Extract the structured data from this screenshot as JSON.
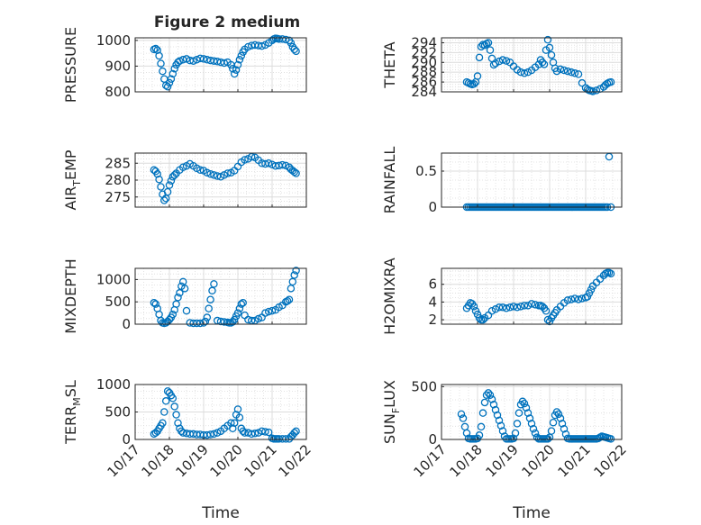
{
  "figure_title": "Figure 2 medium",
  "colors": {
    "marker": "#0072BD",
    "axis": "#262626",
    "grid": "#dcdcdc"
  },
  "chart_data": [
    {
      "type": "scatter",
      "panel": "pressure",
      "title": "Figure 2 medium",
      "ylabel_main": "PRESSURE",
      "ylabel_sub": "",
      "ylabel_tail": "",
      "xlabel": "",
      "ylim": [
        800,
        1010
      ],
      "yticks": [
        800,
        900,
        1000
      ],
      "xlim": [
        17,
        22
      ],
      "xticks": [
        17,
        18,
        19,
        20,
        21,
        22
      ],
      "xtick_labels": [],
      "grid": true,
      "x": [
        17.55,
        17.6,
        17.65,
        17.7,
        17.75,
        17.8,
        17.85,
        17.9,
        17.95,
        18.0,
        18.05,
        18.1,
        18.15,
        18.2,
        18.25,
        18.3,
        18.4,
        18.5,
        18.6,
        18.7,
        18.8,
        18.9,
        19.0,
        19.1,
        19.2,
        19.3,
        19.4,
        19.5,
        19.6,
        19.7,
        19.8,
        19.85,
        19.9,
        19.95,
        20.0,
        20.05,
        20.1,
        20.15,
        20.2,
        20.3,
        20.4,
        20.5,
        20.6,
        20.7,
        20.8,
        20.9,
        21.0,
        21.05,
        21.1,
        21.15,
        21.2,
        21.3,
        21.4,
        21.5,
        21.55,
        21.6,
        21.65,
        21.7
      ],
      "y": [
        965,
        968,
        962,
        940,
        910,
        880,
        850,
        825,
        820,
        835,
        850,
        870,
        890,
        905,
        915,
        920,
        925,
        928,
        922,
        920,
        925,
        930,
        928,
        925,
        922,
        920,
        918,
        915,
        912,
        915,
        905,
        890,
        870,
        885,
        905,
        925,
        940,
        955,
        965,
        975,
        980,
        982,
        980,
        978,
        982,
        990,
        1000,
        1005,
        1008,
        1007,
        1005,
        1005,
        1003,
        1000,
        990,
        975,
        965,
        958
      ]
    },
    {
      "type": "scatter",
      "panel": "theta",
      "title": "",
      "ylabel_main": "THETA",
      "ylabel_sub": "",
      "ylabel_tail": "",
      "xlabel": "",
      "ylim": [
        284,
        295
      ],
      "yticks": [
        284,
        286,
        288,
        290,
        292,
        294
      ],
      "xlim": [
        17,
        22
      ],
      "xticks": [
        17,
        18,
        19,
        20,
        21,
        22
      ],
      "xtick_labels": [],
      "grid": true,
      "x": [
        17.7,
        17.75,
        17.8,
        17.85,
        17.9,
        17.95,
        18.0,
        18.05,
        18.1,
        18.15,
        18.2,
        18.25,
        18.3,
        18.35,
        18.4,
        18.45,
        18.5,
        18.6,
        18.7,
        18.8,
        18.9,
        19.0,
        19.1,
        19.2,
        19.3,
        19.4,
        19.5,
        19.6,
        19.7,
        19.75,
        19.8,
        19.85,
        19.9,
        19.95,
        20.0,
        20.05,
        20.1,
        20.15,
        20.2,
        20.3,
        20.4,
        20.5,
        20.6,
        20.7,
        20.8,
        20.9,
        21.0,
        21.05,
        21.1,
        21.15,
        21.2,
        21.3,
        21.4,
        21.5,
        21.55,
        21.6,
        21.65,
        21.7
      ],
      "y": [
        286.0,
        285.8,
        285.6,
        285.5,
        285.6,
        286.0,
        287.2,
        291.0,
        293.2,
        293.6,
        293.5,
        293.8,
        294.0,
        292.5,
        290.8,
        289.5,
        289.8,
        290.2,
        290.5,
        290.3,
        290.0,
        289.2,
        288.5,
        288.0,
        287.8,
        288.0,
        288.4,
        289.0,
        289.6,
        290.5,
        290.0,
        289.6,
        292.5,
        294.6,
        293.0,
        291.5,
        290.0,
        288.8,
        288.2,
        288.6,
        288.4,
        288.2,
        288.0,
        287.8,
        287.6,
        285.8,
        284.8,
        284.5,
        284.3,
        284.2,
        284.1,
        284.3,
        284.6,
        285.0,
        285.4,
        285.7,
        285.9,
        286.0
      ]
    },
    {
      "type": "scatter",
      "panel": "air_temp",
      "title": "",
      "ylabel_main": "AIR",
      "ylabel_sub": "T",
      "ylabel_tail": "EMP",
      "xlabel": "",
      "ylim": [
        272,
        288
      ],
      "yticks": [
        275,
        280,
        285
      ],
      "xlim": [
        17,
        22
      ],
      "xticks": [
        17,
        18,
        19,
        20,
        21,
        22
      ],
      "xtick_labels": [],
      "grid": true,
      "x": [
        17.55,
        17.6,
        17.65,
        17.7,
        17.75,
        17.8,
        17.85,
        17.9,
        17.95,
        18.0,
        18.05,
        18.1,
        18.15,
        18.2,
        18.3,
        18.4,
        18.5,
        18.6,
        18.7,
        18.8,
        18.9,
        19.0,
        19.1,
        19.2,
        19.3,
        19.4,
        19.5,
        19.6,
        19.7,
        19.8,
        19.9,
        20.0,
        20.1,
        20.2,
        20.3,
        20.4,
        20.5,
        20.6,
        20.7,
        20.8,
        20.9,
        21.0,
        21.1,
        21.2,
        21.3,
        21.4,
        21.5,
        21.55,
        21.6,
        21.65,
        21.7
      ],
      "y": [
        283.0,
        282.6,
        281.8,
        280.2,
        278.0,
        275.8,
        274.0,
        274.6,
        276.5,
        278.5,
        279.8,
        281.0,
        281.5,
        282.0,
        283.0,
        283.8,
        284.2,
        284.8,
        284.2,
        283.5,
        283.0,
        282.8,
        282.2,
        281.8,
        281.5,
        281.2,
        281.0,
        281.5,
        282.0,
        282.2,
        282.8,
        284.0,
        285.3,
        286.0,
        286.3,
        286.9,
        286.7,
        285.9,
        285.0,
        284.8,
        285.0,
        284.6,
        284.2,
        284.3,
        284.5,
        284.3,
        283.8,
        283.2,
        282.8,
        282.4,
        282.0
      ]
    },
    {
      "type": "scatter",
      "panel": "rainfall",
      "title": "",
      "ylabel_main": "RAINFALL",
      "ylabel_sub": "",
      "ylabel_tail": "",
      "xlabel": "",
      "ylim": [
        0,
        0.75
      ],
      "yticks": [
        0,
        0.5
      ],
      "xlim": [
        17,
        22
      ],
      "xticks": [
        17,
        18,
        19,
        20,
        21,
        22
      ],
      "xtick_labels": [],
      "grid": true,
      "x": [
        17.7,
        17.75,
        17.8,
        17.85,
        17.9,
        17.95,
        18.0,
        18.05,
        18.1,
        18.15,
        18.2,
        18.25,
        18.3,
        18.35,
        18.4,
        18.45,
        18.5,
        18.55,
        18.6,
        18.65,
        18.7,
        18.75,
        18.8,
        18.85,
        18.9,
        18.95,
        19.0,
        19.05,
        19.1,
        19.15,
        19.2,
        19.25,
        19.3,
        19.35,
        19.4,
        19.45,
        19.5,
        19.55,
        19.6,
        19.65,
        19.7,
        19.75,
        19.8,
        19.85,
        19.9,
        19.95,
        20.0,
        20.05,
        20.1,
        20.15,
        20.2,
        20.25,
        20.3,
        20.35,
        20.4,
        20.45,
        20.5,
        20.55,
        20.6,
        20.65,
        20.7,
        20.75,
        20.8,
        20.85,
        20.9,
        20.95,
        21.0,
        21.05,
        21.1,
        21.15,
        21.2,
        21.25,
        21.3,
        21.35,
        21.4,
        21.45,
        21.5,
        21.55,
        21.6,
        21.65,
        21.7
      ],
      "y": [
        0,
        0,
        0,
        0,
        0,
        0,
        0,
        0,
        0,
        0,
        0,
        0,
        0,
        0,
        0,
        0,
        0,
        0,
        0,
        0,
        0,
        0,
        0,
        0,
        0,
        0,
        0,
        0,
        0,
        0,
        0,
        0,
        0,
        0,
        0,
        0,
        0,
        0,
        0,
        0,
        0,
        0,
        0,
        0,
        0,
        0,
        0,
        0,
        0,
        0,
        0,
        0,
        0,
        0,
        0,
        0,
        0,
        0,
        0,
        0,
        0,
        0,
        0,
        0,
        0,
        0,
        0,
        0,
        0,
        0,
        0,
        0,
        0,
        0,
        0,
        0,
        0,
        0,
        0,
        0.7,
        0
      ]
    },
    {
      "type": "scatter",
      "panel": "mixdepth",
      "title": "",
      "ylabel_main": "MIXDEPTH",
      "ylabel_sub": "",
      "ylabel_tail": "",
      "xlabel": "",
      "ylim": [
        0,
        1250
      ],
      "yticks": [
        0,
        500,
        1000
      ],
      "xlim": [
        17,
        22
      ],
      "xticks": [
        17,
        18,
        19,
        20,
        21,
        22
      ],
      "xtick_labels": [],
      "grid": true,
      "x": [
        17.55,
        17.6,
        17.65,
        17.7,
        17.75,
        17.8,
        17.85,
        17.9,
        17.95,
        18.0,
        18.05,
        18.1,
        18.15,
        18.2,
        18.25,
        18.3,
        18.35,
        18.4,
        18.45,
        18.5,
        18.6,
        18.7,
        18.8,
        18.9,
        19.0,
        19.05,
        19.1,
        19.15,
        19.2,
        19.25,
        19.3,
        19.4,
        19.5,
        19.6,
        19.7,
        19.75,
        19.8,
        19.85,
        19.9,
        19.95,
        20.0,
        20.05,
        20.1,
        20.15,
        20.2,
        20.3,
        20.4,
        20.5,
        20.6,
        20.7,
        20.8,
        20.9,
        21.0,
        21.1,
        21.2,
        21.3,
        21.4,
        21.45,
        21.5,
        21.55,
        21.6,
        21.65,
        21.7
      ],
      "y": [
        480,
        450,
        350,
        220,
        80,
        30,
        20,
        30,
        60,
        100,
        150,
        220,
        320,
        450,
        600,
        700,
        850,
        950,
        800,
        300,
        30,
        20,
        20,
        20,
        30,
        60,
        150,
        350,
        550,
        750,
        900,
        80,
        60,
        50,
        40,
        30,
        30,
        50,
        100,
        180,
        250,
        350,
        450,
        480,
        200,
        100,
        80,
        80,
        120,
        150,
        250,
        280,
        300,
        320,
        380,
        420,
        500,
        520,
        550,
        800,
        950,
        1100,
        1200
      ]
    },
    {
      "type": "scatter",
      "panel": "h2omixra",
      "title": "",
      "ylabel_main": "H2OMIXRA",
      "ylabel_sub": "",
      "ylabel_tail": "",
      "xlabel": "",
      "ylim": [
        1.5,
        7.8
      ],
      "yticks": [
        2,
        4,
        6
      ],
      "xlim": [
        17,
        22
      ],
      "xticks": [
        17,
        18,
        19,
        20,
        21,
        22
      ],
      "xtick_labels": [],
      "grid": true,
      "x": [
        17.7,
        17.75,
        17.8,
        17.85,
        17.9,
        17.95,
        18.0,
        18.05,
        18.1,
        18.15,
        18.2,
        18.3,
        18.4,
        18.5,
        18.6,
        18.7,
        18.8,
        18.9,
        19.0,
        19.1,
        19.2,
        19.3,
        19.4,
        19.5,
        19.6,
        19.7,
        19.75,
        19.8,
        19.85,
        19.9,
        19.95,
        20.0,
        20.05,
        20.1,
        20.15,
        20.2,
        20.3,
        20.4,
        20.5,
        20.6,
        20.7,
        20.8,
        20.9,
        21.0,
        21.05,
        21.1,
        21.15,
        21.2,
        21.3,
        21.4,
        21.5,
        21.55,
        21.6,
        21.65,
        21.7
      ],
      "y": [
        3.3,
        3.6,
        3.9,
        3.8,
        3.5,
        3.0,
        2.6,
        2.2,
        2.0,
        2.0,
        2.2,
        2.5,
        3.0,
        3.2,
        3.4,
        3.4,
        3.3,
        3.4,
        3.5,
        3.4,
        3.5,
        3.6,
        3.6,
        3.8,
        3.7,
        3.6,
        3.6,
        3.5,
        3.3,
        3.0,
        2.0,
        1.8,
        2.2,
        2.5,
        2.8,
        3.1,
        3.5,
        3.9,
        4.2,
        4.3,
        4.4,
        4.3,
        4.4,
        4.5,
        4.6,
        5.0,
        5.4,
        5.8,
        6.2,
        6.6,
        7.0,
        7.2,
        7.3,
        7.3,
        7.2
      ]
    },
    {
      "type": "scatter",
      "panel": "terr_msl",
      "title": "",
      "ylabel_main": "TERR",
      "ylabel_sub": "M",
      "ylabel_tail": "SL",
      "xlabel": "Time",
      "ylim": [
        0,
        1000
      ],
      "yticks": [
        0,
        500,
        1000
      ],
      "xlim": [
        17,
        22
      ],
      "xticks": [
        17,
        18,
        19,
        20,
        21,
        22
      ],
      "xtick_labels": [
        "10/17",
        "10/18",
        "10/19",
        "10/20",
        "10/21",
        "10/22"
      ],
      "grid": true,
      "x": [
        17.55,
        17.6,
        17.65,
        17.7,
        17.75,
        17.8,
        17.85,
        17.9,
        17.95,
        18.0,
        18.05,
        18.1,
        18.15,
        18.2,
        18.25,
        18.3,
        18.35,
        18.4,
        18.5,
        18.6,
        18.7,
        18.8,
        18.9,
        19.0,
        19.1,
        19.2,
        19.3,
        19.4,
        19.5,
        19.6,
        19.7,
        19.8,
        19.85,
        19.9,
        19.95,
        20.0,
        20.05,
        20.1,
        20.15,
        20.2,
        20.3,
        20.4,
        20.5,
        20.6,
        20.7,
        20.8,
        20.9,
        21.0,
        21.05,
        21.1,
        21.15,
        21.2,
        21.3,
        21.4,
        21.5,
        21.55,
        21.6,
        21.65,
        21.7
      ],
      "y": [
        100,
        120,
        150,
        200,
        250,
        300,
        500,
        700,
        880,
        850,
        800,
        750,
        600,
        450,
        300,
        200,
        150,
        120,
        110,
        100,
        100,
        90,
        90,
        80,
        80,
        90,
        100,
        120,
        150,
        200,
        250,
        300,
        200,
        300,
        450,
        550,
        400,
        200,
        150,
        120,
        120,
        100,
        110,
        120,
        150,
        140,
        130,
        20,
        10,
        10,
        10,
        10,
        10,
        10,
        10,
        50,
        80,
        120,
        150
      ]
    },
    {
      "type": "scatter",
      "panel": "sun_flux",
      "title": "",
      "ylabel_main": "SUN",
      "ylabel_sub": "F",
      "ylabel_tail": "LUX",
      "xlabel": "Time",
      "ylim": [
        0,
        520
      ],
      "yticks": [
        0,
        500
      ],
      "xlim": [
        17,
        22
      ],
      "xticks": [
        17,
        18,
        19,
        20,
        21,
        22
      ],
      "xtick_labels": [
        "10/17",
        "10/18",
        "10/19",
        "10/20",
        "10/21",
        "10/22"
      ],
      "grid": true,
      "x": [
        17.55,
        17.6,
        17.65,
        17.7,
        17.75,
        17.8,
        17.85,
        17.9,
        17.95,
        18.0,
        18.05,
        18.1,
        18.15,
        18.2,
        18.25,
        18.3,
        18.35,
        18.4,
        18.45,
        18.5,
        18.55,
        18.6,
        18.65,
        18.7,
        18.75,
        18.8,
        18.85,
        18.9,
        18.95,
        19.0,
        19.05,
        19.1,
        19.15,
        19.2,
        19.25,
        19.3,
        19.35,
        19.4,
        19.45,
        19.5,
        19.55,
        19.6,
        19.65,
        19.7,
        19.75,
        19.8,
        19.85,
        19.9,
        19.95,
        20.0,
        20.05,
        20.1,
        20.15,
        20.2,
        20.25,
        20.3,
        20.35,
        20.4,
        20.45,
        20.5,
        20.55,
        20.6,
        20.65,
        20.7,
        20.75,
        20.8,
        20.85,
        20.9,
        20.95,
        21.0,
        21.05,
        21.1,
        21.15,
        21.2,
        21.25,
        21.3,
        21.35,
        21.4,
        21.45,
        21.5,
        21.55,
        21.6,
        21.65,
        21.7
      ],
      "y": [
        240,
        200,
        120,
        60,
        10,
        5,
        5,
        5,
        5,
        10,
        40,
        120,
        250,
        350,
        420,
        440,
        420,
        380,
        330,
        280,
        230,
        180,
        130,
        80,
        30,
        5,
        5,
        5,
        5,
        10,
        60,
        150,
        250,
        330,
        360,
        340,
        300,
        250,
        200,
        150,
        100,
        60,
        20,
        5,
        5,
        5,
        5,
        5,
        5,
        20,
        80,
        160,
        230,
        260,
        240,
        200,
        150,
        100,
        50,
        10,
        5,
        5,
        5,
        5,
        5,
        5,
        5,
        5,
        5,
        5,
        5,
        5,
        5,
        5,
        5,
        5,
        10,
        20,
        30,
        25,
        20,
        15,
        10,
        5
      ]
    }
  ]
}
